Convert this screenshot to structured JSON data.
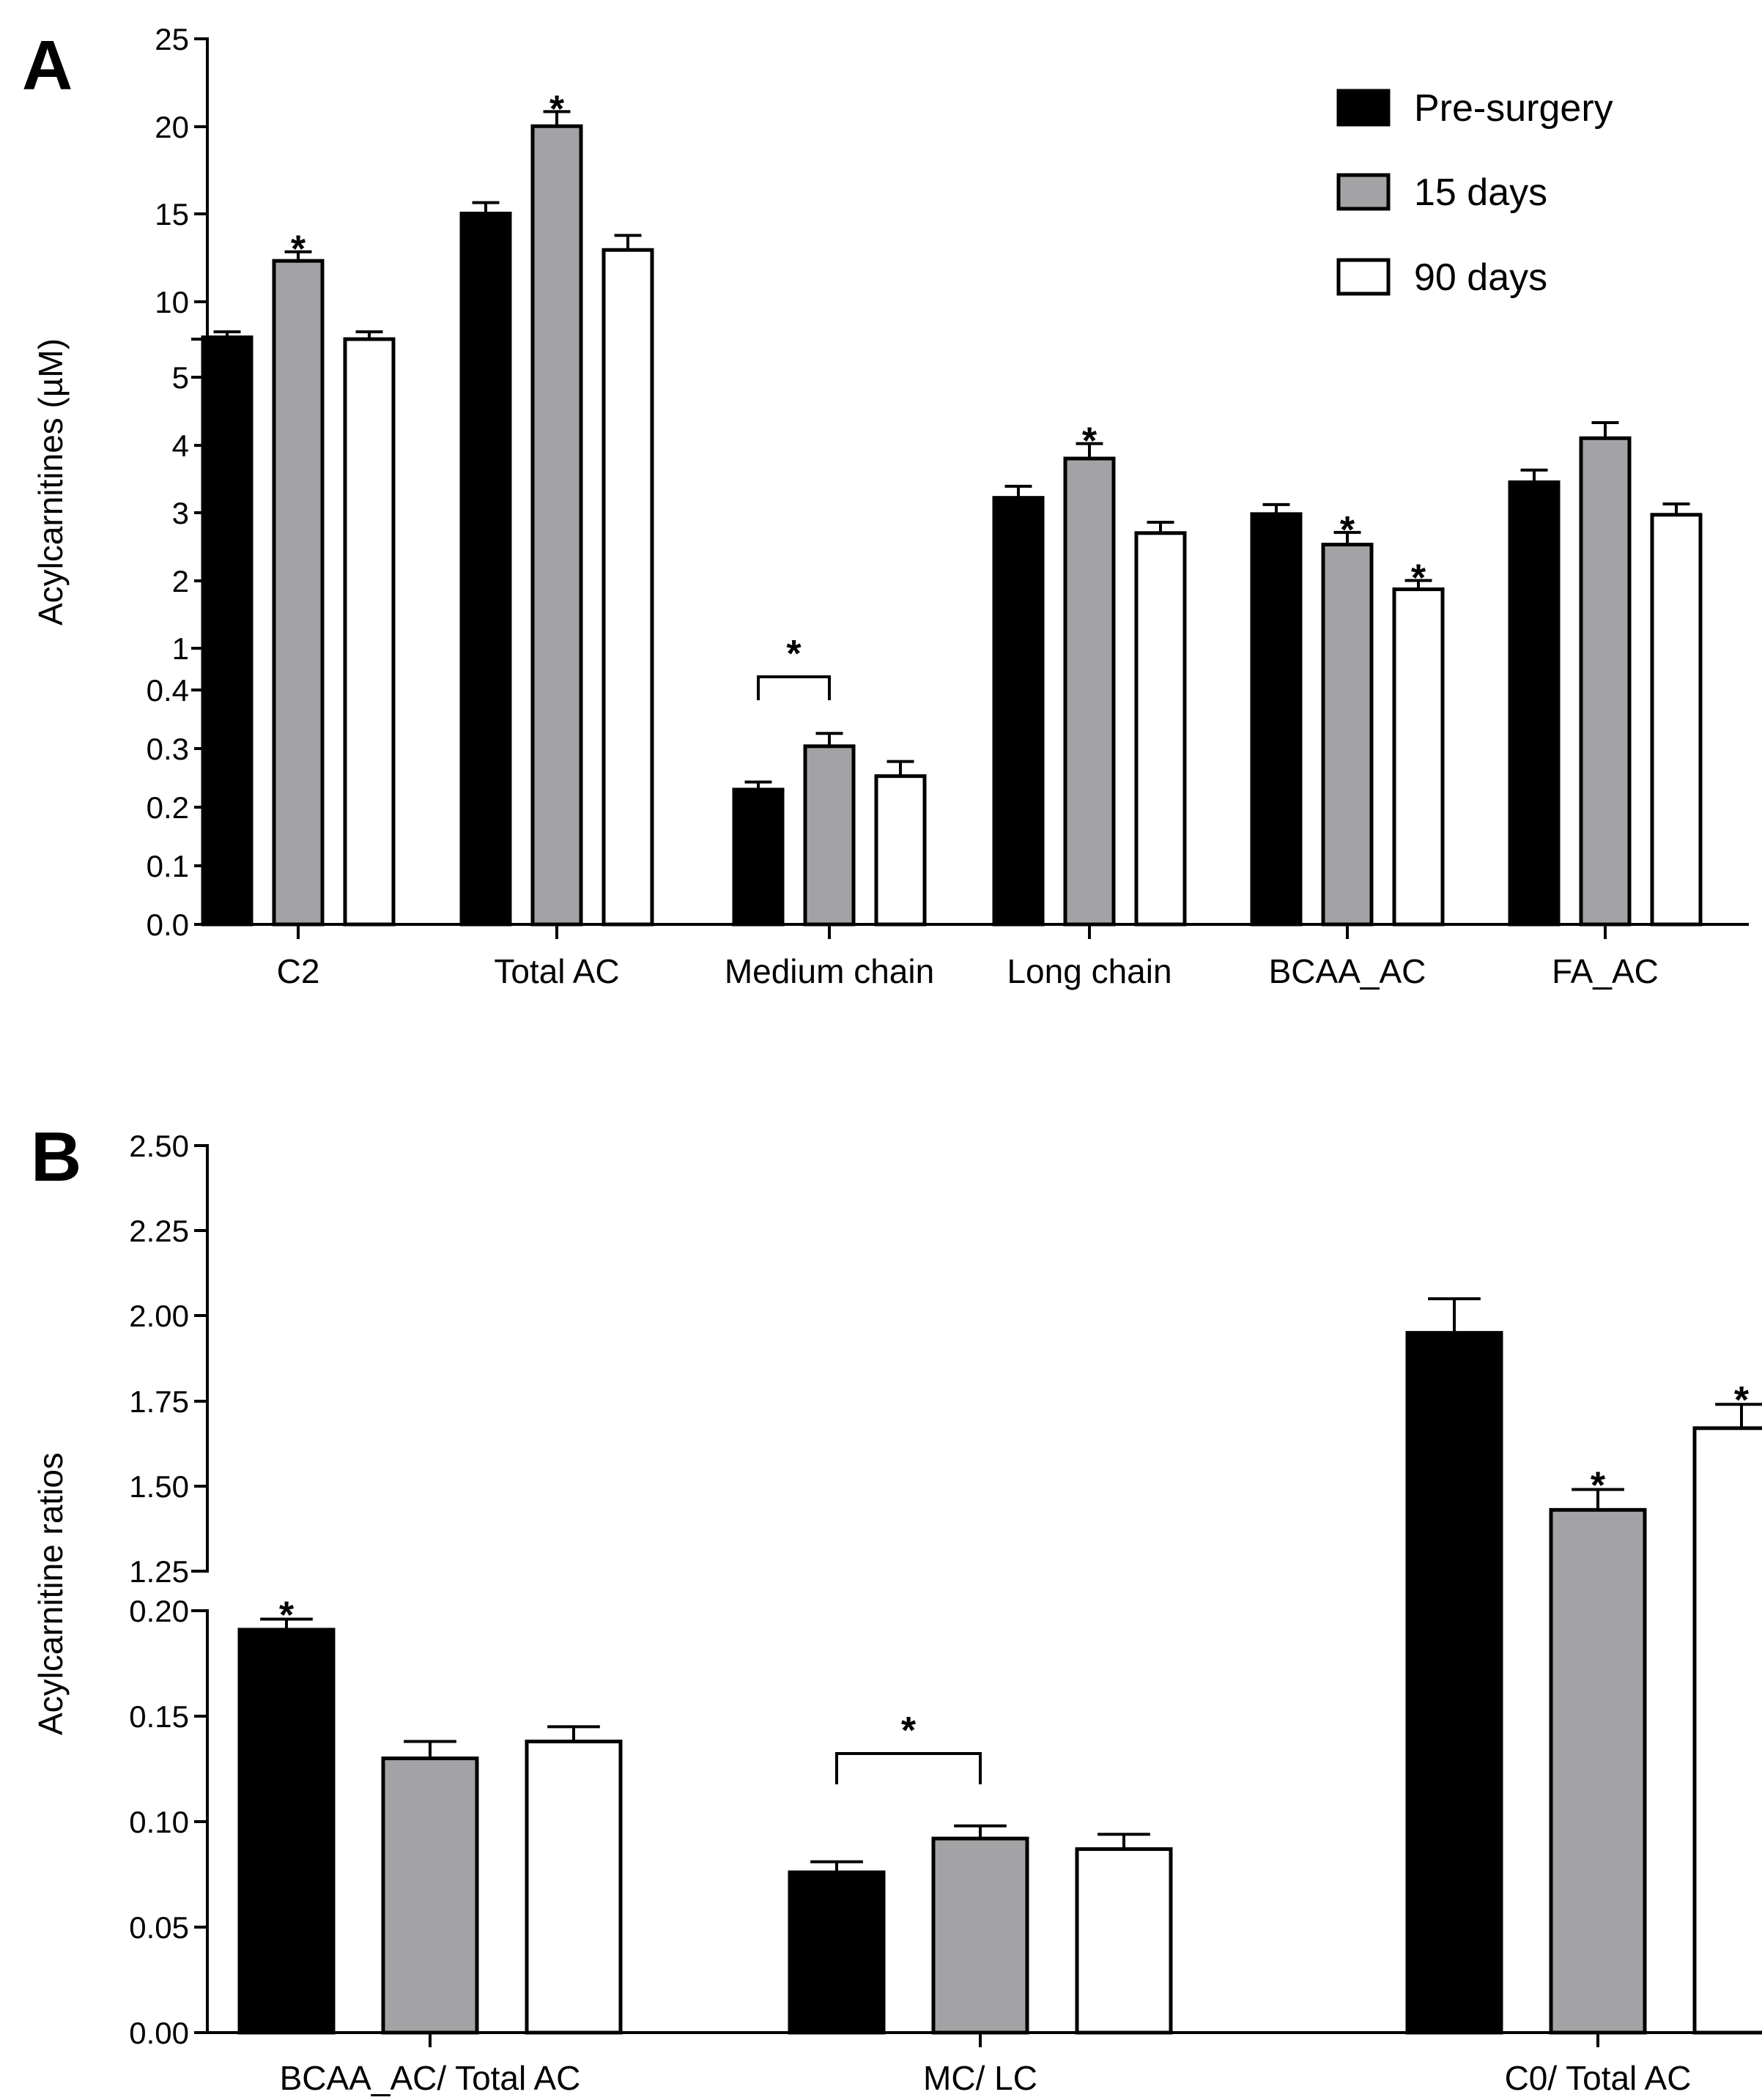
{
  "figure": {
    "panel_labels": [
      "A",
      "B"
    ]
  },
  "colors": {
    "pre_surgery": "#000000",
    "days_15": "#a3a3a6",
    "days_90": "#ffffff",
    "axis": "#000000",
    "break": "#ffffff"
  },
  "legend": {
    "entries": [
      {
        "label": "Pre-surgery",
        "color_key": "pre_surgery"
      },
      {
        "label": "15 days",
        "color_key": "days_15"
      },
      {
        "label": "90 days",
        "color_key": "days_90"
      }
    ]
  },
  "chart_data": [
    {
      "id": "A",
      "type": "bar",
      "title": "",
      "xlabel": "",
      "ylabel": "Acylcarnitines (µM)",
      "grid": false,
      "legend_position": "top-right",
      "categories": [
        "C2",
        "Total AC",
        "Medium chain",
        "Long chain",
        "BCAA_AC",
        "FA_AC"
      ],
      "series": [
        {
          "name": "Pre-surgery",
          "values": [
            8.6,
            15.4,
            0.23,
            3.22,
            2.98,
            3.45
          ],
          "errors": [
            0.3,
            0.6,
            0.013,
            0.17,
            0.14,
            0.18
          ]
        },
        {
          "name": "15 days",
          "values": [
            12.8,
            20.2,
            0.304,
            3.8,
            2.53,
            4.1
          ],
          "errors": [
            0.5,
            0.8,
            0.022,
            0.22,
            0.18,
            0.23
          ]
        },
        {
          "name": "90 days",
          "values": [
            8.5,
            13.4,
            0.253,
            2.7,
            1.87,
            2.97
          ],
          "errors": [
            0.4,
            0.8,
            0.025,
            0.16,
            0.13,
            0.16
          ]
        }
      ],
      "axis_segments": [
        {
          "range": [
            0.0,
            0.4
          ],
          "ticks": [
            "0.0",
            "0.1",
            "0.2",
            "0.3",
            "0.4"
          ]
        },
        {
          "range": [
            1,
            5
          ],
          "ticks": [
            "1",
            "2",
            "3",
            "4",
            "5"
          ]
        },
        {
          "range": [
            8.5,
            25
          ],
          "ticks": [
            "10",
            "15",
            "20",
            "25"
          ]
        }
      ],
      "significance": [
        {
          "category": "C2",
          "series": "15 days",
          "label": "*"
        },
        {
          "category": "Total AC",
          "series": "15 days",
          "label": "*"
        },
        {
          "category": "Long chain",
          "series": "15 days",
          "label": "*"
        },
        {
          "category": "BCAA_AC",
          "series": "15 days",
          "label": "*"
        },
        {
          "category": "BCAA_AC",
          "series": "90 days",
          "label": "*"
        }
      ],
      "brackets": [
        {
          "category": "Medium chain",
          "from": "Pre-surgery",
          "to": "15 days",
          "label": "*"
        }
      ]
    },
    {
      "id": "B",
      "type": "bar",
      "title": "",
      "xlabel": "",
      "ylabel": "Acylcarnitine ratios",
      "grid": false,
      "categories": [
        "BCAA_AC/ Total AC",
        "MC/ LC",
        "C0/ Total AC"
      ],
      "series": [
        {
          "name": "Pre-surgery",
          "values": [
            0.191,
            0.076,
            1.95
          ],
          "errors": [
            0.005,
            0.005,
            0.1
          ]
        },
        {
          "name": "15 days",
          "values": [
            0.13,
            0.092,
            1.43
          ],
          "errors": [
            0.008,
            0.006,
            0.06
          ]
        },
        {
          "name": "90 days",
          "values": [
            0.138,
            0.087,
            1.67
          ],
          "errors": [
            0.007,
            0.007,
            0.07
          ]
        }
      ],
      "axis_segments": [
        {
          "range": [
            0.0,
            0.2
          ],
          "ticks": [
            "0.00",
            "0.05",
            "0.10",
            "0.15",
            "0.20"
          ]
        },
        {
          "range": [
            1.25,
            2.5
          ],
          "ticks": [
            "1.25",
            "1.50",
            "1.75",
            "2.00",
            "2.25",
            "2.50"
          ]
        }
      ],
      "significance": [
        {
          "category": "BCAA_AC/ Total AC",
          "series": "Pre-surgery",
          "label": "*"
        },
        {
          "category": "C0/ Total AC",
          "series": "15 days",
          "label": "*"
        },
        {
          "category": "C0/ Total AC",
          "series": "90 days",
          "label": "*"
        }
      ],
      "brackets": [
        {
          "category": "MC/ LC",
          "from": "Pre-surgery",
          "to": "15 days",
          "label": "*"
        }
      ]
    }
  ]
}
